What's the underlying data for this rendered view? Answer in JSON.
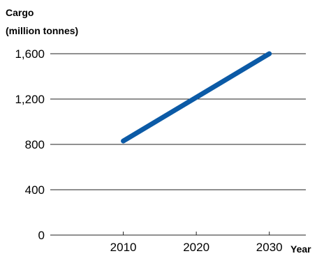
{
  "chart_data": {
    "type": "line",
    "ylabel_line1": "Cargo",
    "ylabel_line2": "(million tonnes)",
    "xlabel": "Year",
    "x": [
      2010,
      2030
    ],
    "series": [
      {
        "values": [
          830,
          1600
        ]
      }
    ],
    "xlim": [
      2000,
      2035
    ],
    "ylim": [
      0,
      1600
    ],
    "x_ticks": [
      2010,
      2020,
      2030
    ],
    "x_tick_labels": [
      "2010",
      "2020",
      "2030"
    ],
    "y_ticks": [
      0,
      400,
      800,
      1200,
      1600
    ],
    "y_tick_labels": [
      "0",
      "400",
      "800",
      "1,200",
      "1,600"
    ],
    "grid": "horizontal",
    "colors": {
      "series": "#0b5aa6",
      "grid": "#222222",
      "axis": "#222222"
    }
  }
}
